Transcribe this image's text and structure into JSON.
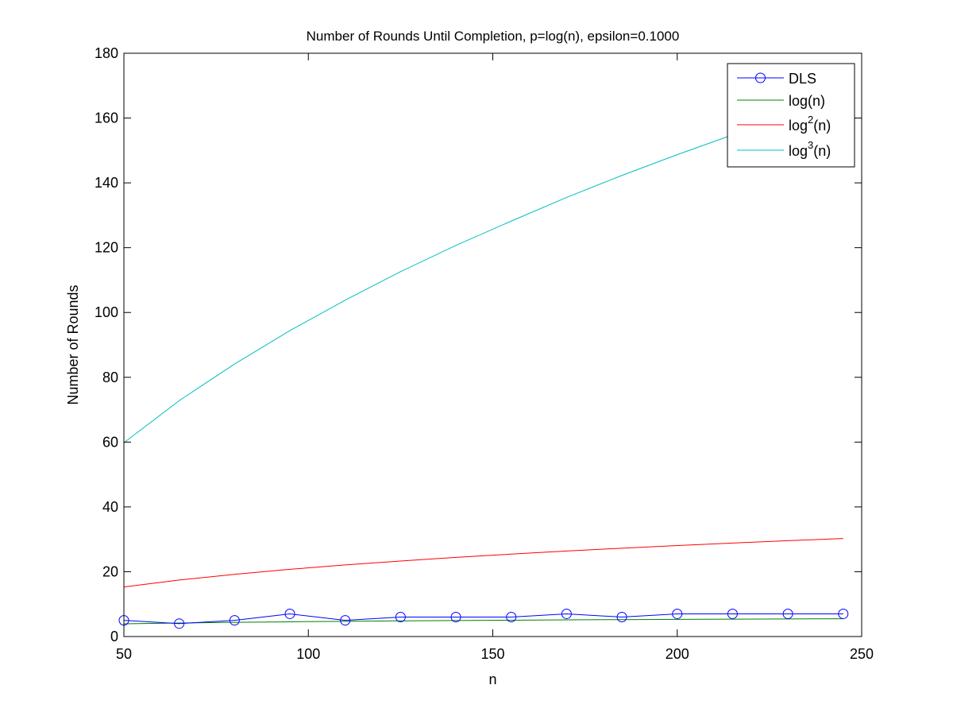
{
  "chart_data": {
    "type": "line",
    "title": "Number of Rounds Until Completion, p=log(n), epsilon=0.1000",
    "xlabel": "n",
    "ylabel": "Number of Rounds",
    "xlim": [
      50,
      250
    ],
    "ylim": [
      0,
      180
    ],
    "xticks": [
      50,
      100,
      150,
      200,
      250
    ],
    "yticks": [
      0,
      20,
      40,
      60,
      80,
      100,
      120,
      140,
      160,
      180
    ],
    "x": [
      50,
      65,
      80,
      95,
      110,
      125,
      140,
      155,
      170,
      185,
      200,
      215,
      230,
      245
    ],
    "legend_position": "top-right",
    "grid": false,
    "series": [
      {
        "name": "DLS",
        "label_base": "DLS",
        "label_sup": "",
        "label_suffix": "",
        "color": "#0000ff",
        "marker": "circle",
        "values": [
          5,
          4,
          5,
          7,
          5,
          6,
          6,
          6,
          7,
          6,
          7,
          7,
          7,
          7
        ]
      },
      {
        "name": "log(n)",
        "label_base": "log(n)",
        "label_sup": "",
        "label_suffix": "",
        "color": "#008000",
        "marker": "none",
        "values": [
          3.91,
          4.17,
          4.38,
          4.55,
          4.7,
          4.83,
          4.94,
          5.04,
          5.14,
          5.22,
          5.3,
          5.37,
          5.44,
          5.5
        ]
      },
      {
        "name": "log2(n)",
        "label_base": "log",
        "label_sup": "2",
        "label_suffix": "(n)",
        "color": "#ff0000",
        "marker": "none",
        "values": [
          15.3,
          17.43,
          19.2,
          20.74,
          22.09,
          23.31,
          24.42,
          25.43,
          26.38,
          27.26,
          28.07,
          28.84,
          29.57,
          30.26
        ]
      },
      {
        "name": "log3(n)",
        "label_base": "log",
        "label_sup": "3",
        "label_suffix": "(n)",
        "color": "#00bfbf",
        "marker": "none",
        "values": [
          59.8,
          72.8,
          84.1,
          94.4,
          103.8,
          112.6,
          120.7,
          128.2,
          135.5,
          142.3,
          148.7,
          154.8,
          160.7,
          166.4
        ]
      }
    ]
  }
}
